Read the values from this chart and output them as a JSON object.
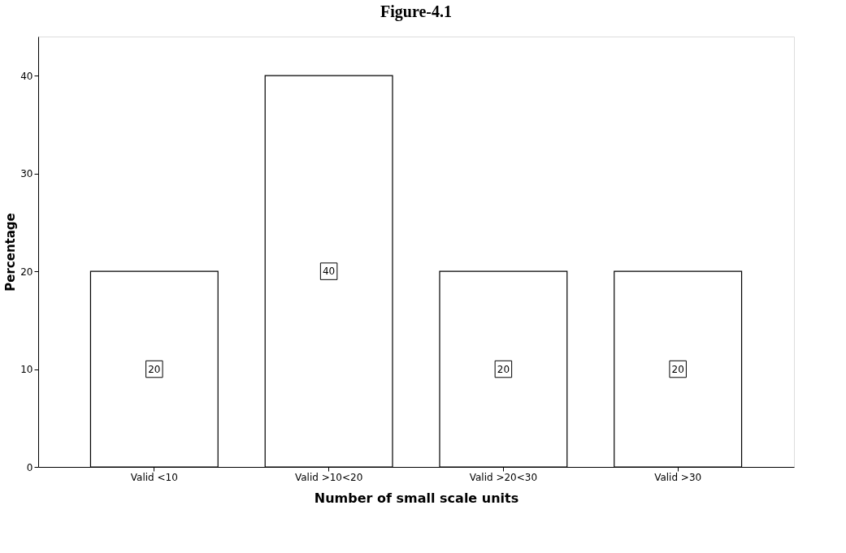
{
  "chart_data": {
    "type": "bar",
    "title": "Figure-4.1",
    "xlabel": "Number of small scale units",
    "ylabel": "Percentage",
    "categories": [
      "Valid <10",
      "Valid >10<20",
      "Valid >20<30",
      "Valid >30"
    ],
    "values": [
      20,
      40,
      20,
      20
    ],
    "color": "#ffffff",
    "ylim": [
      0,
      44
    ],
    "yticks": [
      0,
      10,
      20,
      30,
      40
    ],
    "grid": false,
    "data_labels": true
  }
}
